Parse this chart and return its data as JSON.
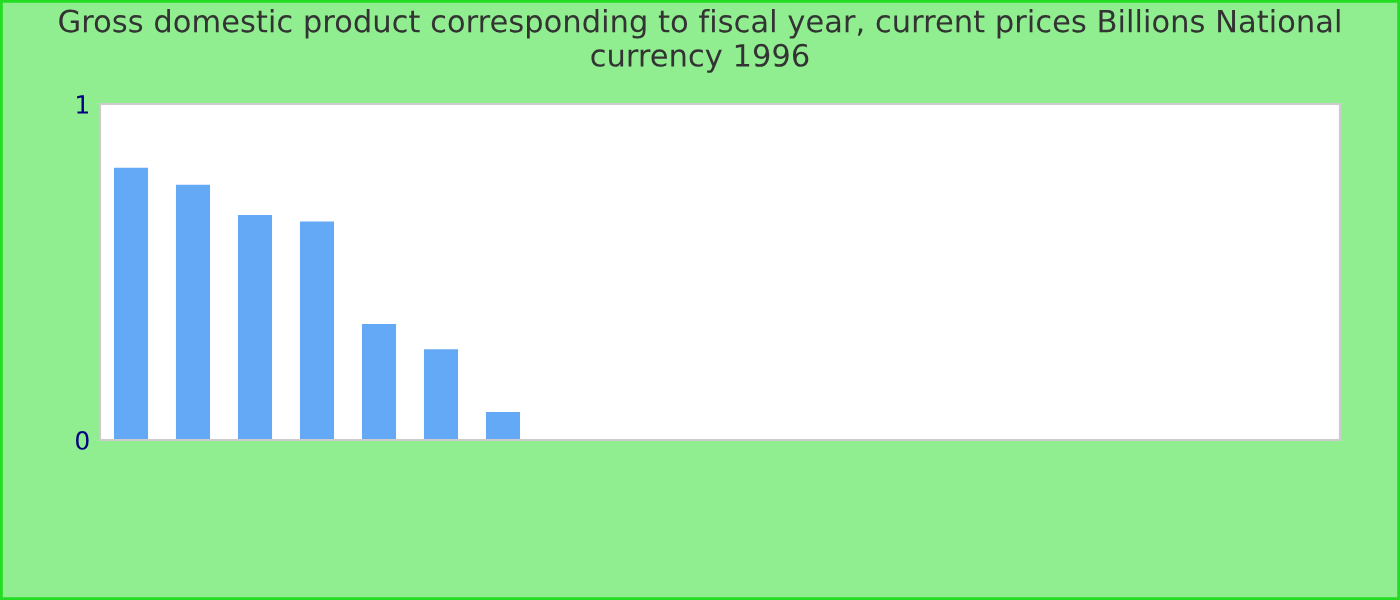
{
  "chart_data": {
    "type": "bar",
    "title": "Gross domestic product corresponding to fiscal year, current prices Billions National currency 1996",
    "categories": [
      null,
      null,
      null,
      null,
      null,
      null,
      null,
      null,
      null,
      null,
      null,
      null,
      null,
      null,
      null,
      null,
      null,
      null,
      null,
      null
    ],
    "values": [
      0.81,
      0.76,
      0.67,
      0.65,
      0.345,
      0.27,
      0.083,
      0,
      0,
      0,
      0,
      0,
      0,
      0,
      0,
      0,
      0,
      0,
      0,
      0
    ],
    "color": "#63a9f5",
    "ylim": [
      0,
      1
    ],
    "yticks": [
      0,
      1
    ],
    "grid": false,
    "legend": false
  }
}
